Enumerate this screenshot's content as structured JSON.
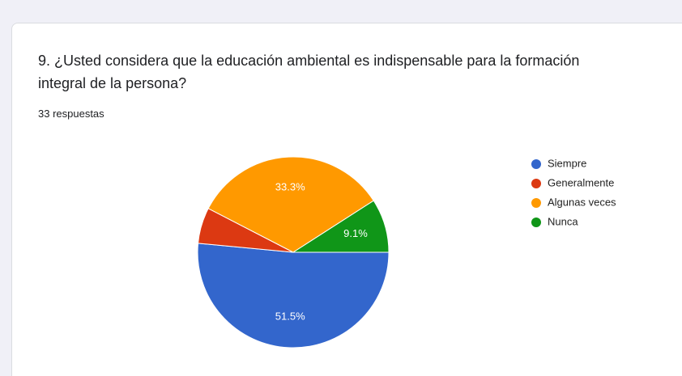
{
  "chart_data": {
    "type": "pie",
    "title": "9. ¿Usted considera que la educación ambiental es indispensable para la formación integral de la persona?",
    "subtitle": "33 respuestas",
    "categories": [
      "Siempre",
      "Generalmente",
      "Algunas veces",
      "Nunca"
    ],
    "values": [
      51.5,
      6.1,
      33.3,
      9.1
    ],
    "value_labels": [
      "51.5%",
      null,
      "33.3%",
      "9.1%"
    ],
    "colors": [
      "#3366cc",
      "#dc3912",
      "#ff9900",
      "#109618"
    ],
    "legend": "right"
  }
}
